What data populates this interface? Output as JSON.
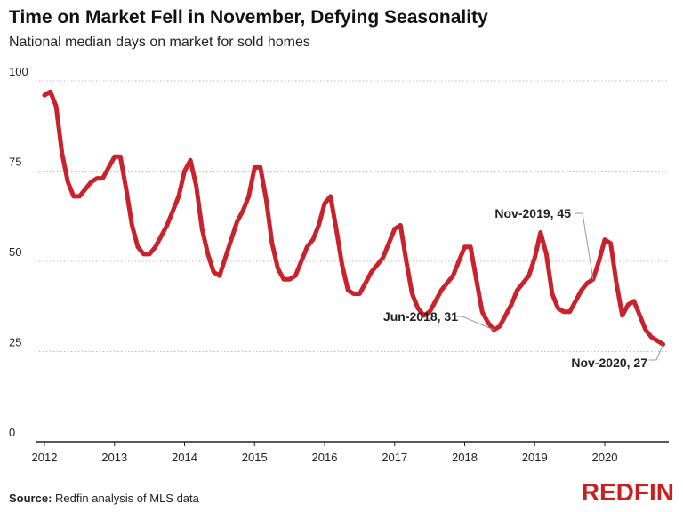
{
  "chart_data": {
    "type": "line",
    "title": "Time on Market Fell in November, Defying Seasonality",
    "subtitle": "National median days on market for sold homes",
    "xlabel": "",
    "ylabel": "",
    "ylim": [
      0,
      100
    ],
    "yticks": [
      "0",
      "25",
      "50",
      "75",
      "100"
    ],
    "xticks": [
      "2012",
      "2013",
      "2014",
      "2015",
      "2016",
      "2017",
      "2018",
      "2019",
      "2020"
    ],
    "grid": true,
    "start": "Jan-2012",
    "frequency": "monthly",
    "series": [
      {
        "name": "Median days on market",
        "color": "#c8232c",
        "values": [
          96,
          97,
          93,
          80,
          72,
          68,
          68,
          70,
          72,
          73,
          73,
          76,
          79,
          79,
          70,
          60,
          54,
          52,
          52,
          54,
          57,
          60,
          64,
          68,
          75,
          78,
          71,
          59,
          52,
          47,
          46,
          51,
          56,
          61,
          64,
          68,
          76,
          76,
          67,
          55,
          48,
          45,
          45,
          46,
          50,
          54,
          56,
          60,
          66,
          68,
          59,
          49,
          42,
          41,
          41,
          44,
          47,
          49,
          51,
          55,
          59,
          60,
          50,
          41,
          37,
          35,
          36,
          39,
          42,
          44,
          46,
          50,
          54,
          54,
          45,
          36,
          33,
          31,
          32,
          35,
          38,
          42,
          44,
          46,
          51,
          58,
          52,
          41,
          37,
          36,
          36,
          39,
          42,
          44,
          45,
          50,
          56,
          55,
          44,
          35,
          38,
          39,
          35,
          31,
          29,
          28,
          27
        ]
      }
    ],
    "annotations": [
      {
        "label": "Nov-2019, 45",
        "index": 94
      },
      {
        "label": "Jun-2018, 31",
        "index": 77
      },
      {
        "label": "Nov-2020, 27",
        "index": 106
      }
    ]
  },
  "source_label": "Source:",
  "source_text": " Redfin analysis of MLS data",
  "logo": "REDFIN"
}
